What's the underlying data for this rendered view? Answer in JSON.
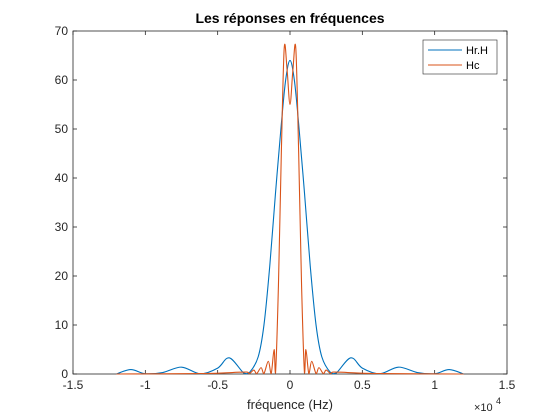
{
  "chart_data": {
    "type": "line",
    "title": "Les réponses en fréquences",
    "xlabel": "fréquence (Hz)",
    "ylabel": "",
    "x_multiplier_label": "×10",
    "x_multiplier_exponent": "4",
    "xlim": [
      -1.5,
      1.5
    ],
    "ylim": [
      0,
      70
    ],
    "xticks": [
      -1.5,
      -1,
      -0.5,
      0,
      0.5,
      1,
      1.5
    ],
    "xtick_labels": [
      "-1.5",
      "-1",
      "-0.5",
      "0",
      "0.5",
      "1",
      "1.5"
    ],
    "yticks": [
      0,
      10,
      20,
      30,
      40,
      50,
      60,
      70
    ],
    "ytick_labels": [
      "0",
      "10",
      "20",
      "30",
      "40",
      "50",
      "60",
      "70"
    ],
    "grid": false,
    "legend_position": "top-right",
    "series": [
      {
        "name": "Hr.H",
        "color": "#0072BD",
        "points": [
          [
            -1.2,
            0
          ],
          [
            -1.1,
            0.9
          ],
          [
            -1.0,
            0.05
          ],
          [
            -0.88,
            0.3
          ],
          [
            -0.75,
            1.4
          ],
          [
            -0.62,
            0.05
          ],
          [
            -0.5,
            1.2
          ],
          [
            -0.42,
            3.3
          ],
          [
            -0.32,
            0.2
          ],
          [
            -0.28,
            0.3
          ],
          [
            -0.22,
            3.5
          ],
          [
            -0.18,
            10
          ],
          [
            -0.14,
            22
          ],
          [
            -0.1,
            37
          ],
          [
            -0.06,
            51
          ],
          [
            -0.03,
            60
          ],
          [
            0,
            64
          ],
          [
            0.03,
            60
          ],
          [
            0.06,
            51
          ],
          [
            0.1,
            37
          ],
          [
            0.14,
            22
          ],
          [
            0.18,
            10
          ],
          [
            0.22,
            3.5
          ],
          [
            0.28,
            0.3
          ],
          [
            0.32,
            0.2
          ],
          [
            0.42,
            3.3
          ],
          [
            0.5,
            1.2
          ],
          [
            0.62,
            0.05
          ],
          [
            0.75,
            1.4
          ],
          [
            0.88,
            0.3
          ],
          [
            1.0,
            0.05
          ],
          [
            1.1,
            0.9
          ],
          [
            1.2,
            0
          ]
        ]
      },
      {
        "name": "Hc",
        "color": "#D95319",
        "points": [
          [
            -1.2,
            0
          ],
          [
            -0.6,
            0.1
          ],
          [
            -0.4,
            0.3
          ],
          [
            -0.3,
            0.4
          ],
          [
            -0.28,
            0.1
          ],
          [
            -0.25,
            0.8
          ],
          [
            -0.23,
            0.1
          ],
          [
            -0.2,
            1.3
          ],
          [
            -0.18,
            0.1
          ],
          [
            -0.15,
            2.6
          ],
          [
            -0.13,
            0.1
          ],
          [
            -0.11,
            5.0
          ],
          [
            -0.1,
            0.2
          ],
          [
            -0.08,
            18
          ],
          [
            -0.06,
            45
          ],
          [
            -0.04,
            66.5
          ],
          [
            -0.02,
            62
          ],
          [
            0,
            55
          ],
          [
            0.02,
            62
          ],
          [
            0.04,
            66.5
          ],
          [
            0.06,
            45
          ],
          [
            0.08,
            18
          ],
          [
            0.1,
            0.2
          ],
          [
            0.11,
            5.0
          ],
          [
            0.13,
            0.1
          ],
          [
            0.15,
            2.6
          ],
          [
            0.18,
            0.1
          ],
          [
            0.2,
            1.3
          ],
          [
            0.23,
            0.1
          ],
          [
            0.25,
            0.8
          ],
          [
            0.28,
            0.1
          ],
          [
            0.3,
            0.4
          ],
          [
            0.4,
            0.3
          ],
          [
            0.6,
            0.1
          ],
          [
            1.2,
            0
          ]
        ]
      }
    ]
  }
}
